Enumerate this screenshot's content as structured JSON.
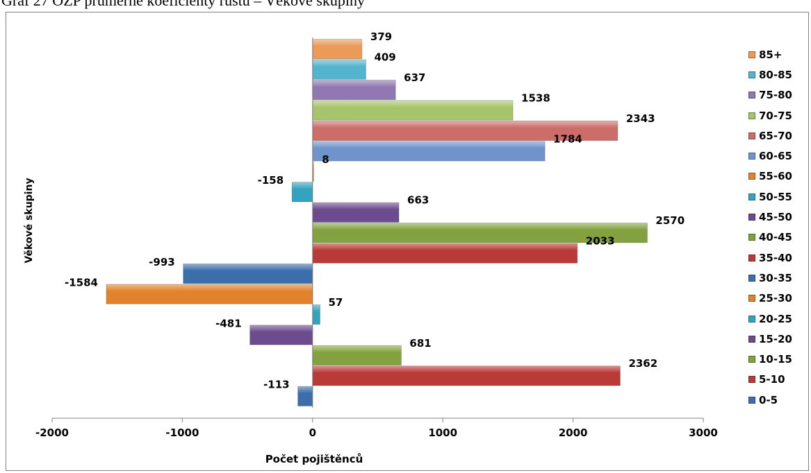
{
  "caption": "Graf 27 OZP průměrné koeficienty růstu – Věkové skupiny",
  "chart_data": {
    "type": "bar",
    "orientation": "horizontal",
    "title": "",
    "xlabel": "Počet pojištěnců",
    "ylabel": "Věkové skupiny",
    "xlim": [
      -2000,
      3000
    ],
    "xticks": [
      -2000,
      -1000,
      0,
      1000,
      2000,
      3000
    ],
    "grid": false,
    "legend_position": "right",
    "categories": [
      "0-5",
      "5-10",
      "10-15",
      "15-20",
      "20-25",
      "25-30",
      "30-35",
      "35-40",
      "40-45",
      "45-50",
      "50-55",
      "55-60",
      "60-65",
      "65-70",
      "70-75",
      "75-80",
      "80-85",
      "85+"
    ],
    "values": [
      -113,
      2362,
      681,
      -481,
      57,
      -1584,
      -993,
      2033,
      2570,
      663,
      -158,
      8,
      1784,
      2343,
      1538,
      637,
      409,
      379
    ],
    "colors": [
      "#3b6eab",
      "#b93a37",
      "#83a23f",
      "#6c4b8e",
      "#33a3c0",
      "#e1822d",
      "#3b6eab",
      "#b93a37",
      "#83a23f",
      "#6c4b8e",
      "#33a3c0",
      "#e1822d",
      "#6f94cb",
      "#cd6d6a",
      "#a6c46b",
      "#9178b2",
      "#55b4cd",
      "#eb9a58"
    ]
  }
}
